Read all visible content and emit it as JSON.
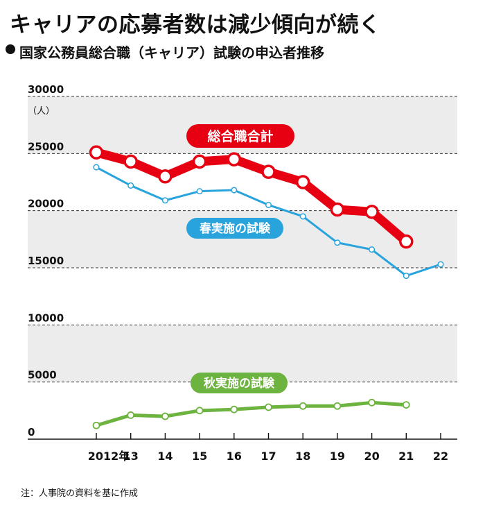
{
  "title": "キャリアの応募者数は減少傾向が続く",
  "subtitle": "国家公務員総合職（キャリア）試験の申込者推移",
  "note": "注：人事院の資料を基に作成",
  "colors": {
    "total": "#e60012",
    "spring": "#29a3dc",
    "autumn": "#6db33f",
    "band": "#ececec"
  },
  "chart_data": {
    "type": "line",
    "unit_label": "（人）",
    "x_labels": [
      "2012年",
      "13",
      "14",
      "15",
      "16",
      "17",
      "18",
      "19",
      "20",
      "21",
      "22"
    ],
    "ylim": [
      0,
      30000
    ],
    "y_ticks": [
      "0",
      "5000",
      "10000",
      "15000",
      "20000",
      "25000",
      "30000"
    ],
    "series": [
      {
        "name": "総合職合計",
        "color": "#e60012",
        "values": [
          25100,
          24300,
          23000,
          24300,
          24500,
          23400,
          22500,
          20100,
          19900,
          17300,
          null
        ]
      },
      {
        "name": "春実施の試験",
        "color": "#29a3dc",
        "values": [
          23800,
          22200,
          20900,
          21700,
          21800,
          20500,
          19500,
          17200,
          16600,
          14300,
          15300
        ]
      },
      {
        "name": "秋実施の試験",
        "color": "#6db33f",
        "values": [
          1200,
          2100,
          2000,
          2500,
          2600,
          2800,
          2900,
          2900,
          3200,
          3000,
          null
        ]
      }
    ]
  }
}
